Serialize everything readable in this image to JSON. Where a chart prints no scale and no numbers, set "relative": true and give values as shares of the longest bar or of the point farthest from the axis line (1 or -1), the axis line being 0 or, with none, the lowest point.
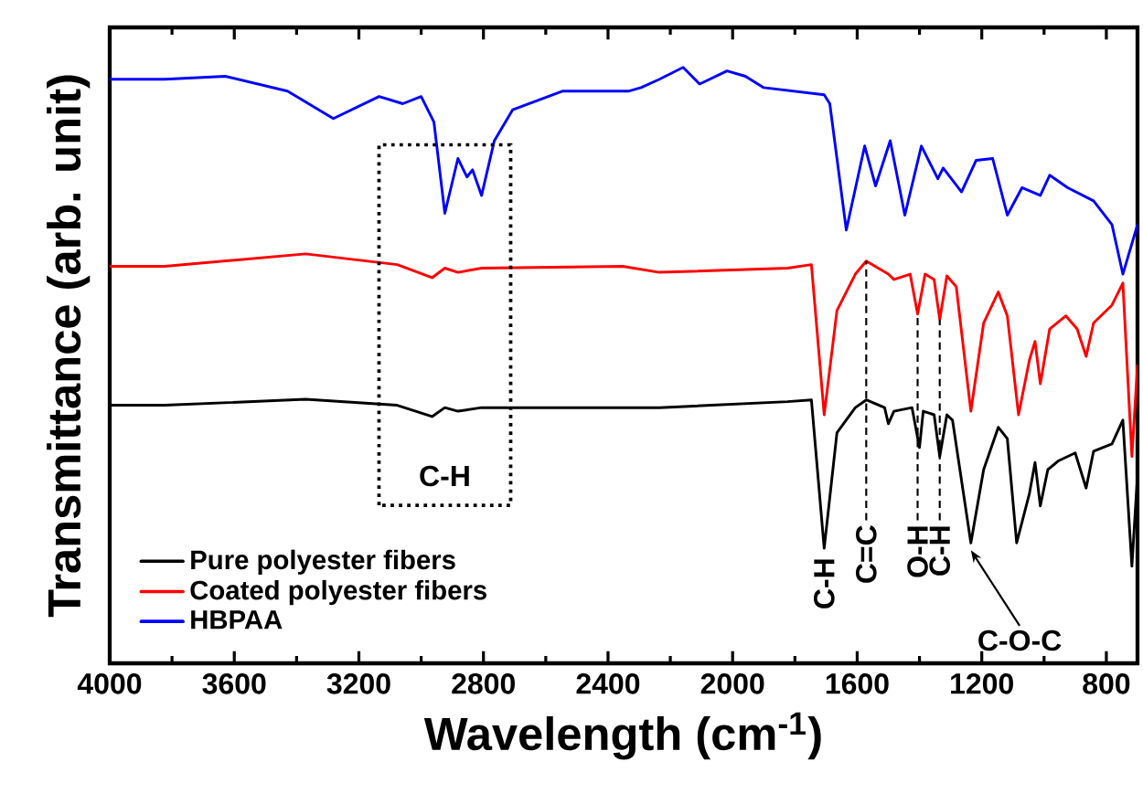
{
  "chart_data": {
    "type": "line",
    "relative": true,
    "xlabel": "Wavelength (cm$^{-1}$)",
    "ylabel": "Transmittance (arb. unit)",
    "xlim": [
      4000,
      700
    ],
    "xticks": [
      4000,
      3600,
      3200,
      2800,
      2400,
      2000,
      1600,
      1200,
      800
    ],
    "legend": "bottom left",
    "line_style": "solid",
    "series": [
      {
        "name": "Pure polyester fibers",
        "color": "#000000",
        "x": [
          4000,
          3824,
          3371,
          3077,
          2965,
          2924,
          2882,
          2806,
          2235,
          1824,
          1747,
          1706,
          1665,
          1606,
          1571,
          1512,
          1500,
          1482,
          1424,
          1400,
          1388,
          1353,
          1335,
          1312,
          1294,
          1235,
          1194,
          1147,
          1118,
          1088,
          1047,
          1029,
          1012,
          988,
          953,
          900,
          865,
          841,
          782,
          747,
          718,
          700
        ],
        "values": [
          0.433,
          0.433,
          0.443,
          0.433,
          0.414,
          0.429,
          0.423,
          0.429,
          0.429,
          0.439,
          0.442,
          0.193,
          0.387,
          0.429,
          0.442,
          0.429,
          0.402,
          0.423,
          0.429,
          0.362,
          0.423,
          0.417,
          0.347,
          0.417,
          0.408,
          0.202,
          0.325,
          0.396,
          0.377,
          0.202,
          0.285,
          0.337,
          0.264,
          0.325,
          0.34,
          0.353,
          0.294,
          0.356,
          0.368,
          0.408,
          0.163,
          0.316
        ]
      },
      {
        "name": "Coated polyester fibers",
        "color": "#ff0000",
        "x": [
          4000,
          3824,
          3371,
          3077,
          2965,
          2924,
          2882,
          2806,
          2353,
          2235,
          1824,
          1747,
          1706,
          1665,
          1606,
          1571,
          1500,
          1482,
          1430,
          1406,
          1382,
          1353,
          1335,
          1312,
          1282,
          1235,
          1194,
          1147,
          1118,
          1082,
          1047,
          1029,
          1012,
          982,
          930,
          894,
          865,
          841,
          782,
          747,
          718,
          700
        ],
        "values": [
          0.666,
          0.666,
          0.687,
          0.669,
          0.647,
          0.663,
          0.656,
          0.663,
          0.666,
          0.656,
          0.663,
          0.669,
          0.417,
          0.592,
          0.653,
          0.675,
          0.653,
          0.644,
          0.653,
          0.586,
          0.653,
          0.644,
          0.577,
          0.65,
          0.632,
          0.423,
          0.571,
          0.623,
          0.583,
          0.417,
          0.509,
          0.54,
          0.469,
          0.561,
          0.583,
          0.561,
          0.515,
          0.571,
          0.601,
          0.638,
          0.347,
          0.5
        ]
      },
      {
        "name": "HBPAA",
        "color": "#0000ff",
        "x": [
          4000,
          3824,
          3629,
          3429,
          3282,
          3135,
          3059,
          3000,
          2959,
          2924,
          2882,
          2853,
          2835,
          2806,
          2765,
          2706,
          2547,
          2335,
          2294,
          2235,
          2159,
          2106,
          2018,
          1959,
          1900,
          1706,
          1688,
          1635,
          1576,
          1541,
          1494,
          1447,
          1394,
          1341,
          1324,
          1265,
          1218,
          1165,
          1118,
          1071,
          1012,
          982,
          924,
          841,
          782,
          747,
          700
        ],
        "values": [
          0.98,
          0.98,
          0.985,
          0.96,
          0.914,
          0.951,
          0.939,
          0.951,
          0.908,
          0.755,
          0.847,
          0.816,
          0.828,
          0.785,
          0.877,
          0.929,
          0.96,
          0.96,
          0.966,
          0.98,
          1.0,
          0.972,
          0.994,
          0.985,
          0.966,
          0.954,
          0.939,
          0.727,
          0.868,
          0.801,
          0.877,
          0.752,
          0.868,
          0.813,
          0.831,
          0.791,
          0.844,
          0.847,
          0.752,
          0.798,
          0.785,
          0.819,
          0.798,
          0.776,
          0.736,
          0.653,
          0.736
        ]
      }
    ],
    "annotations": [
      {
        "text": "C-H",
        "x": 2924,
        "y": 0.429
      },
      {
        "text": "C-H",
        "x": 1706,
        "y": 0.193
      },
      {
        "text": "C=C",
        "x": 1571,
        "y": 0.675
      },
      {
        "text": "O-H",
        "x": 1406,
        "y": 0.586
      },
      {
        "text": "C-H",
        "x": 1335,
        "y": 0.577
      },
      {
        "text": "C-O-C",
        "x": 1235,
        "y": 0.202
      }
    ]
  }
}
